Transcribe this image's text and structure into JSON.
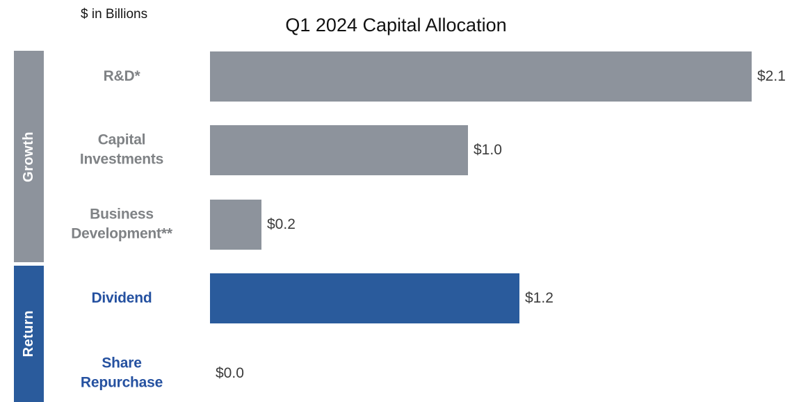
{
  "header": {
    "units_label": "$ in Billions",
    "title": "Q1 2024 Capital Allocation"
  },
  "groups": [
    {
      "label": "Growth"
    },
    {
      "label": "Return"
    }
  ],
  "rows": [
    {
      "label": "R&D*",
      "value": 2.1,
      "display": "$2.1",
      "group": "Growth"
    },
    {
      "label": "Capital\nInvestments",
      "value": 1.0,
      "display": "$1.0",
      "group": "Growth"
    },
    {
      "label": "Business\nDevelopment**",
      "value": 0.2,
      "display": "$0.2",
      "group": "Growth"
    },
    {
      "label": "Dividend",
      "value": 1.2,
      "display": "$1.2",
      "group": "Return"
    },
    {
      "label": "Share\nRepurchase",
      "value": 0.0,
      "display": "$0.0",
      "group": "Return"
    }
  ],
  "chart_data": {
    "type": "bar",
    "orientation": "horizontal",
    "title": "Q1 2024 Capital Allocation",
    "units": "$ in Billions",
    "categories": [
      "R&D*",
      "Capital Investments",
      "Business Development**",
      "Dividend",
      "Share Repurchase"
    ],
    "values": [
      2.1,
      1.0,
      0.2,
      1.2,
      0.0
    ],
    "value_labels": [
      "$2.1",
      "$1.0",
      "$0.2",
      "$1.2",
      "$0.0"
    ],
    "group_bands": [
      "Growth",
      "Growth",
      "Growth",
      "Return",
      "Return"
    ],
    "xlim": [
      0,
      2.25
    ],
    "grid": false,
    "legend": false,
    "colors": {
      "growth_bar": "#8D939C",
      "return_bar": "#2A5B9C",
      "growth_label_text": "#7F8285",
      "return_label_text": "#2551A0",
      "value_text": "#3C3C3C",
      "band_text": "#FFFFFF"
    }
  }
}
